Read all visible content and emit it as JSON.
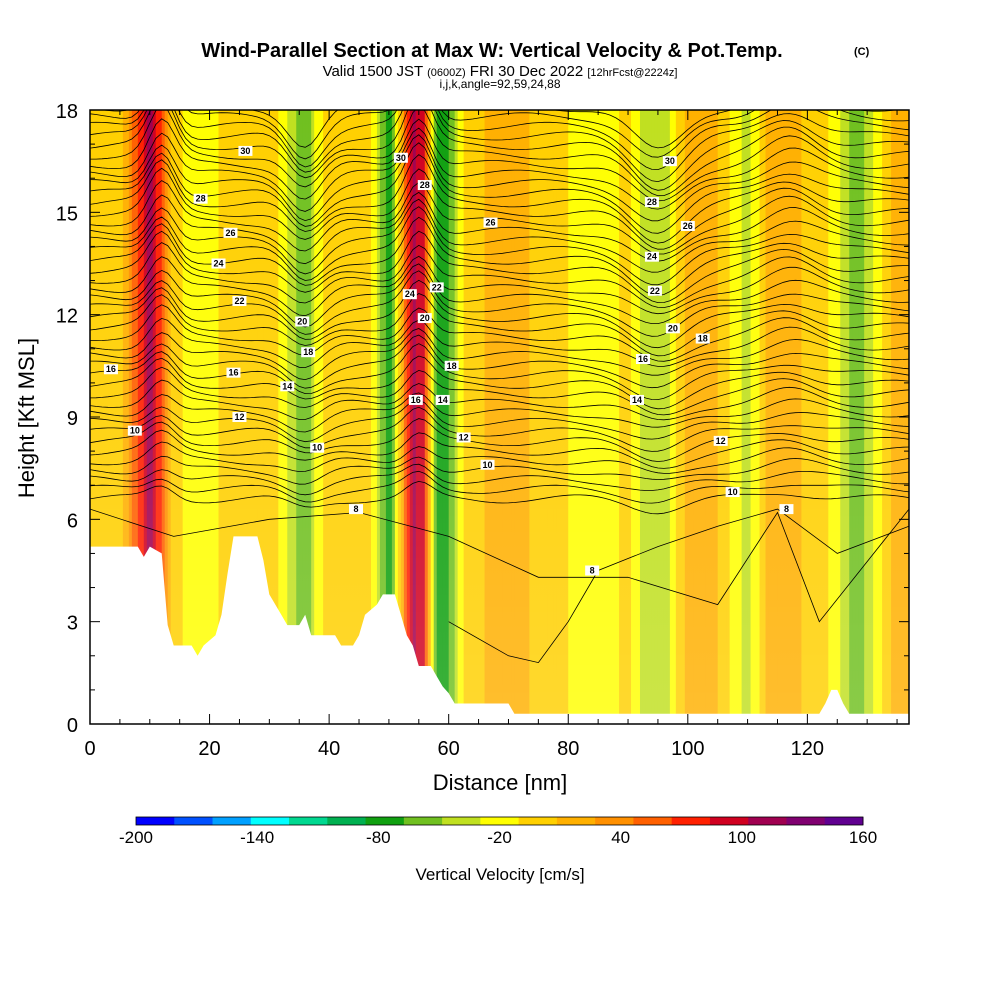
{
  "header": {
    "title": "Wind-Parallel Section at Max W: Vertical Velocity & Pot.Temp.",
    "copyright": "(C)",
    "valid_prefix": "Valid 1500 JST ",
    "valid_zulu": "(0600Z)",
    "valid_date": " FRI 30 Dec 2022 ",
    "forecast": "[12hrFcst@2224z]",
    "params": "i,j,k,angle=92,59,24,88"
  },
  "chart_data": {
    "type": "heatmap",
    "title": "Wind-Parallel Section at Max W: Vertical Velocity & Pot.Temp.",
    "xlabel": "Distance [nm]",
    "ylabel": "Height [Kft MSL]",
    "xlim": [
      0,
      137
    ],
    "ylim": [
      0,
      18
    ],
    "x_ticks": [
      0,
      20,
      40,
      60,
      80,
      100,
      120
    ],
    "y_ticks": [
      0,
      3,
      6,
      9,
      12,
      15,
      18
    ],
    "colorbar": {
      "label": "Vertical Velocity [cm/s]",
      "min": -200,
      "max": 160,
      "step": 20,
      "tick_values": [
        -200,
        -140,
        -80,
        -20,
        40,
        100,
        160
      ],
      "colors": [
        "#0000ff",
        "#0050ff",
        "#00a0ff",
        "#00ffff",
        "#00d890",
        "#00b050",
        "#10a010",
        "#70c020",
        "#c0e020",
        "#ffff00",
        "#ffd000",
        "#ffb000",
        "#ff9000",
        "#ff6000",
        "#ff2000",
        "#d00020",
        "#a00050",
        "#800070",
        "#600090"
      ]
    },
    "velocity_columns": [
      {
        "x": 0,
        "w": 5
      },
      {
        "x": 5,
        "w": 5
      },
      {
        "x": 10,
        "w": 130
      },
      {
        "x": 12,
        "w": 80
      },
      {
        "x": 14,
        "w": 10
      },
      {
        "x": 17,
        "w": -10
      },
      {
        "x": 19,
        "w": -20
      },
      {
        "x": 22,
        "w": 5
      },
      {
        "x": 25,
        "w": 20
      },
      {
        "x": 28,
        "w": 10
      },
      {
        "x": 31,
        "w": 5
      },
      {
        "x": 34,
        "w": -30
      },
      {
        "x": 36,
        "w": -60
      },
      {
        "x": 38,
        "w": -10
      },
      {
        "x": 41,
        "w": 20
      },
      {
        "x": 44,
        "w": 5
      },
      {
        "x": 47,
        "w": 0
      },
      {
        "x": 50,
        "w": -80
      },
      {
        "x": 52,
        "w": 20
      },
      {
        "x": 54,
        "w": 130
      },
      {
        "x": 56,
        "w": 100
      },
      {
        "x": 58,
        "w": -80
      },
      {
        "x": 60,
        "w": -60
      },
      {
        "x": 63,
        "w": 10
      },
      {
        "x": 66,
        "w": 20
      },
      {
        "x": 70,
        "w": 40
      },
      {
        "x": 75,
        "w": 10
      },
      {
        "x": 80,
        "w": 0
      },
      {
        "x": 85,
        "w": -10
      },
      {
        "x": 90,
        "w": 5
      },
      {
        "x": 94,
        "w": -40
      },
      {
        "x": 97,
        "w": -20
      },
      {
        "x": 100,
        "w": 30
      },
      {
        "x": 103,
        "w": 40
      },
      {
        "x": 107,
        "w": 0
      },
      {
        "x": 110,
        "w": -30
      },
      {
        "x": 113,
        "w": 20
      },
      {
        "x": 116,
        "w": 40
      },
      {
        "x": 119,
        "w": 20
      },
      {
        "x": 122,
        "w": 10
      },
      {
        "x": 125,
        "w": -10
      },
      {
        "x": 128,
        "w": -60
      },
      {
        "x": 131,
        "w": -20
      },
      {
        "x": 134,
        "w": 20
      },
      {
        "x": 137,
        "w": 30
      }
    ],
    "terrain": [
      {
        "x": 0,
        "h": 5.2
      },
      {
        "x": 8,
        "h": 5.2
      },
      {
        "x": 9,
        "h": 4.9
      },
      {
        "x": 10,
        "h": 5.2
      },
      {
        "x": 12,
        "h": 5.0
      },
      {
        "x": 13,
        "h": 2.9
      },
      {
        "x": 14,
        "h": 2.3
      },
      {
        "x": 17,
        "h": 2.3
      },
      {
        "x": 18,
        "h": 2.0
      },
      {
        "x": 19,
        "h": 2.3
      },
      {
        "x": 21,
        "h": 2.6
      },
      {
        "x": 22,
        "h": 3.2
      },
      {
        "x": 23,
        "h": 4.4
      },
      {
        "x": 24,
        "h": 5.5
      },
      {
        "x": 28,
        "h": 5.5
      },
      {
        "x": 29,
        "h": 4.8
      },
      {
        "x": 30,
        "h": 3.8
      },
      {
        "x": 32,
        "h": 3.2
      },
      {
        "x": 33,
        "h": 2.9
      },
      {
        "x": 35,
        "h": 2.9
      },
      {
        "x": 36,
        "h": 3.2
      },
      {
        "x": 37,
        "h": 2.6
      },
      {
        "x": 41,
        "h": 2.6
      },
      {
        "x": 42,
        "h": 2.3
      },
      {
        "x": 44,
        "h": 2.3
      },
      {
        "x": 45,
        "h": 2.6
      },
      {
        "x": 46,
        "h": 3.2
      },
      {
        "x": 48,
        "h": 3.5
      },
      {
        "x": 49,
        "h": 3.8
      },
      {
        "x": 51,
        "h": 3.8
      },
      {
        "x": 52,
        "h": 3.2
      },
      {
        "x": 53,
        "h": 2.6
      },
      {
        "x": 54,
        "h": 2.3
      },
      {
        "x": 55,
        "h": 1.7
      },
      {
        "x": 57,
        "h": 1.7
      },
      {
        "x": 58,
        "h": 1.4
      },
      {
        "x": 59,
        "h": 1.1
      },
      {
        "x": 60,
        "h": 0.9
      },
      {
        "x": 61,
        "h": 0.6
      },
      {
        "x": 70,
        "h": 0.6
      },
      {
        "x": 71,
        "h": 0.3
      },
      {
        "x": 122,
        "h": 0.3
      },
      {
        "x": 123,
        "h": 0.6
      },
      {
        "x": 124,
        "h": 1.0
      },
      {
        "x": 125,
        "h": 1.0
      },
      {
        "x": 126,
        "h": 0.6
      },
      {
        "x": 127,
        "h": 0.3
      },
      {
        "x": 137,
        "h": 0.3
      }
    ],
    "contour_labels": [
      {
        "text": "30",
        "x": 26,
        "y": 16.8
      },
      {
        "text": "30",
        "x": 52,
        "y": 16.6
      },
      {
        "text": "30",
        "x": 97,
        "y": 16.5
      },
      {
        "text": "28",
        "x": 18.5,
        "y": 15.4
      },
      {
        "text": "28",
        "x": 56,
        "y": 15.8
      },
      {
        "text": "28",
        "x": 94,
        "y": 15.3
      },
      {
        "text": "26",
        "x": 23.5,
        "y": 14.4
      },
      {
        "text": "26",
        "x": 67,
        "y": 14.7
      },
      {
        "text": "26",
        "x": 100,
        "y": 14.6
      },
      {
        "text": "24",
        "x": 21.5,
        "y": 13.5
      },
      {
        "text": "24",
        "x": 53.5,
        "y": 12.6
      },
      {
        "text": "24",
        "x": 94,
        "y": 13.7
      },
      {
        "text": "22",
        "x": 25,
        "y": 12.4
      },
      {
        "text": "22",
        "x": 58,
        "y": 12.8
      },
      {
        "text": "22",
        "x": 94.5,
        "y": 12.7
      },
      {
        "text": "20",
        "x": 35.5,
        "y": 11.8
      },
      {
        "text": "20",
        "x": 56,
        "y": 11.9
      },
      {
        "text": "20",
        "x": 97.5,
        "y": 11.6
      },
      {
        "text": "18",
        "x": 36.5,
        "y": 10.9
      },
      {
        "text": "18",
        "x": 60.5,
        "y": 10.5
      },
      {
        "text": "18",
        "x": 102.5,
        "y": 11.3
      },
      {
        "text": "16",
        "x": 3.5,
        "y": 10.4
      },
      {
        "text": "16",
        "x": 24,
        "y": 10.3
      },
      {
        "text": "16",
        "x": 54.5,
        "y": 9.5
      },
      {
        "text": "16",
        "x": 92.5,
        "y": 10.7
      },
      {
        "text": "14",
        "x": 33,
        "y": 9.9
      },
      {
        "text": "14",
        "x": 59,
        "y": 9.5
      },
      {
        "text": "14",
        "x": 91.5,
        "y": 9.5
      },
      {
        "text": "12",
        "x": 25,
        "y": 9.0
      },
      {
        "text": "12",
        "x": 62.5,
        "y": 8.4
      },
      {
        "text": "12",
        "x": 105.5,
        "y": 8.3
      },
      {
        "text": "10",
        "x": 7.5,
        "y": 8.6
      },
      {
        "text": "10",
        "x": 38,
        "y": 8.1
      },
      {
        "text": "10",
        "x": 66.5,
        "y": 7.6
      },
      {
        "text": "10",
        "x": 107.5,
        "y": 6.8
      },
      {
        "text": "8",
        "x": 44.5,
        "y": 6.3
      },
      {
        "text": "8",
        "x": 84,
        "y": 4.5
      },
      {
        "text": "8",
        "x": 116.5,
        "y": 6.3
      }
    ]
  }
}
